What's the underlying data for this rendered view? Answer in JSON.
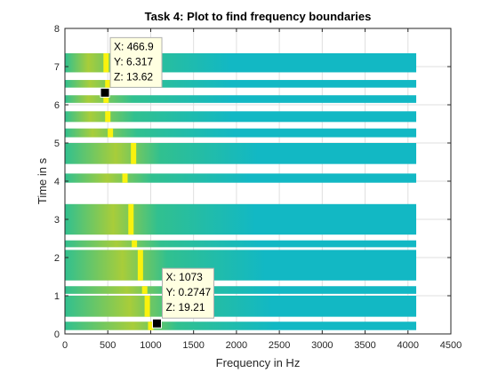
{
  "chart_data": {
    "type": "heatmap",
    "title": "Task 4: Plot to find frequency boundaries",
    "xlabel": "Frequency in Hz",
    "ylabel": "Time in s",
    "xlim": [
      0,
      4500
    ],
    "ylim": [
      0,
      8
    ],
    "xticks": [
      0,
      500,
      1000,
      1500,
      2000,
      2500,
      3000,
      3500,
      4000,
      4500
    ],
    "yticks": [
      0,
      1,
      2,
      3,
      4,
      5,
      6,
      7,
      8
    ],
    "grid": true,
    "x_max_data": 4096,
    "time_segments": [
      {
        "t_start": 0.1,
        "t_end": 0.32,
        "peak_hz": 1000
      },
      {
        "t_start": 0.45,
        "t_end": 1.0,
        "peak_hz": 960
      },
      {
        "t_start": 1.05,
        "t_end": 1.25,
        "peak_hz": 930
      },
      {
        "t_start": 1.4,
        "t_end": 2.2,
        "peak_hz": 880
      },
      {
        "t_start": 2.27,
        "t_end": 2.45,
        "peak_hz": 810
      },
      {
        "t_start": 2.6,
        "t_end": 3.4,
        "peak_hz": 770
      },
      {
        "t_start": 3.96,
        "t_end": 4.2,
        "peak_hz": 700
      },
      {
        "t_start": 4.45,
        "t_end": 5.0,
        "peak_hz": 800
      },
      {
        "t_start": 5.15,
        "t_end": 5.38,
        "peak_hz": 530
      },
      {
        "t_start": 5.55,
        "t_end": 5.83,
        "peak_hz": 500
      },
      {
        "t_start": 6.05,
        "t_end": 6.25,
        "peak_hz": 480
      },
      {
        "t_start": 6.45,
        "t_end": 6.65,
        "peak_hz": 500
      },
      {
        "t_start": 6.85,
        "t_end": 7.35,
        "peak_hz": 480
      }
    ],
    "datatips": [
      {
        "x": 466.9,
        "y": 6.317,
        "x_label": "X: 466.9",
        "y_label": "Y: 6.317",
        "z_label": "Z: 13.62"
      },
      {
        "x": 1073,
        "y": 0.2747,
        "x_label": "X: 1073",
        "y_label": "Y: 0.2747",
        "z_label": "Z: 19.21"
      }
    ],
    "colors": {
      "base": "#12b8c4",
      "mid": "#31c08f",
      "warm": "#a8cd3a",
      "peak": "#f9f20e",
      "tip_bg": "#ffffe1",
      "tip_border": "#b0b0b0"
    }
  }
}
